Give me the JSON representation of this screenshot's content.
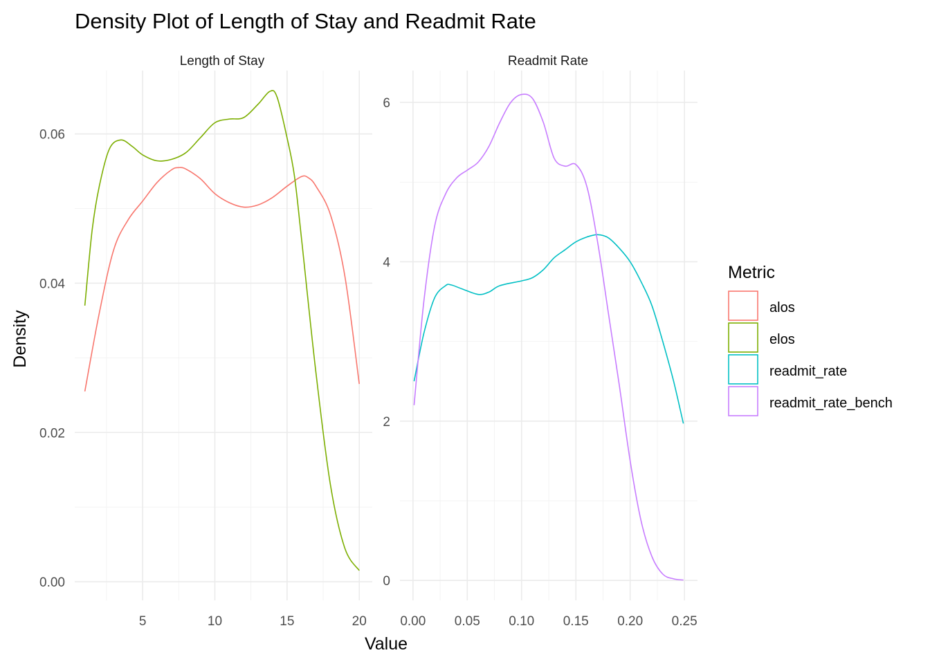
{
  "title": "Density Plot of Length of Stay and Readmit Rate",
  "xlabel": "Value",
  "ylabel": "Density",
  "legend": {
    "title": "Metric",
    "items": [
      {
        "label": "alos",
        "color": "#F8766D"
      },
      {
        "label": "elos",
        "color": "#7CAE00"
      },
      {
        "label": "readmit_rate",
        "color": "#00BFC4"
      },
      {
        "label": "readmit_rate_bench",
        "color": "#C77CFF"
      }
    ]
  },
  "chart_data": [
    {
      "type": "line",
      "panel": "Length of Stay",
      "xlim": [
        0.3,
        20.9
      ],
      "ylim": [
        -0.0025,
        0.0685
      ],
      "xticks": [
        5,
        10,
        15,
        20
      ],
      "yticks": [
        0.0,
        0.02,
        0.04,
        0.06
      ],
      "xtick_labels": [
        "5",
        "10",
        "15",
        "20"
      ],
      "ytick_labels": [
        "0.00",
        "0.02",
        "0.04",
        "0.06"
      ],
      "series": [
        {
          "name": "alos",
          "color": "#F8766D",
          "points": [
            [
              1,
              0.0255
            ],
            [
              2,
              0.036
            ],
            [
              3,
              0.0445
            ],
            [
              4,
              0.0485
            ],
            [
              5,
              0.051
            ],
            [
              6,
              0.0535
            ],
            [
              7,
              0.0552
            ],
            [
              7.5,
              0.0555
            ],
            [
              8,
              0.0553
            ],
            [
              9,
              0.054
            ],
            [
              10,
              0.052
            ],
            [
              11,
              0.0508
            ],
            [
              12,
              0.0502
            ],
            [
              13,
              0.0505
            ],
            [
              14,
              0.0515
            ],
            [
              15,
              0.053
            ],
            [
              16,
              0.0543
            ],
            [
              16.5,
              0.0541
            ],
            [
              17,
              0.053
            ],
            [
              18,
              0.0492
            ],
            [
              19,
              0.041
            ],
            [
              20,
              0.0265
            ]
          ]
        },
        {
          "name": "elos",
          "color": "#7CAE00",
          "points": [
            [
              1,
              0.037
            ],
            [
              1.5,
              0.047
            ],
            [
              2,
              0.053
            ],
            [
              2.7,
              0.058
            ],
            [
              3.5,
              0.0592
            ],
            [
              4.3,
              0.0583
            ],
            [
              5,
              0.0572
            ],
            [
              6,
              0.0564
            ],
            [
              7,
              0.0566
            ],
            [
              8,
              0.0575
            ],
            [
              9,
              0.0595
            ],
            [
              10,
              0.0615
            ],
            [
              11,
              0.062
            ],
            [
              12,
              0.0622
            ],
            [
              13,
              0.064
            ],
            [
              13.8,
              0.0657
            ],
            [
              14.3,
              0.065
            ],
            [
              15,
              0.0595
            ],
            [
              15.5,
              0.0545
            ],
            [
              16,
              0.046
            ],
            [
              17,
              0.028
            ],
            [
              18,
              0.013
            ],
            [
              19,
              0.0045
            ],
            [
              20,
              0.0015
            ]
          ]
        }
      ]
    },
    {
      "type": "line",
      "panel": "Readmit Rate",
      "xlim": [
        -0.012,
        0.262
      ],
      "ylim": [
        -0.25,
        6.4
      ],
      "xticks": [
        0.0,
        0.05,
        0.1,
        0.15,
        0.2,
        0.25
      ],
      "yticks": [
        0,
        2,
        4,
        6
      ],
      "xtick_labels": [
        "0.00",
        "0.05",
        "0.10",
        "0.15",
        "0.20",
        "0.25"
      ],
      "ytick_labels": [
        "0",
        "2",
        "4",
        "6"
      ],
      "series": [
        {
          "name": "readmit_rate",
          "color": "#00BFC4",
          "points": [
            [
              0.001,
              2.5
            ],
            [
              0.01,
              3.1
            ],
            [
              0.02,
              3.55
            ],
            [
              0.03,
              3.7
            ],
            [
              0.035,
              3.71
            ],
            [
              0.045,
              3.66
            ],
            [
              0.06,
              3.59
            ],
            [
              0.07,
              3.62
            ],
            [
              0.08,
              3.7
            ],
            [
              0.1,
              3.76
            ],
            [
              0.11,
              3.8
            ],
            [
              0.12,
              3.9
            ],
            [
              0.13,
              4.05
            ],
            [
              0.14,
              4.15
            ],
            [
              0.15,
              4.25
            ],
            [
              0.16,
              4.31
            ],
            [
              0.17,
              4.34
            ],
            [
              0.18,
              4.3
            ],
            [
              0.19,
              4.17
            ],
            [
              0.2,
              4.0
            ],
            [
              0.21,
              3.75
            ],
            [
              0.22,
              3.45
            ],
            [
              0.23,
              3.0
            ],
            [
              0.24,
              2.5
            ],
            [
              0.249,
              1.97
            ]
          ]
        },
        {
          "name": "readmit_rate_bench",
          "color": "#C77CFF",
          "points": [
            [
              0.001,
              2.2
            ],
            [
              0.01,
              3.5
            ],
            [
              0.02,
              4.45
            ],
            [
              0.03,
              4.85
            ],
            [
              0.04,
              5.05
            ],
            [
              0.05,
              5.15
            ],
            [
              0.06,
              5.25
            ],
            [
              0.07,
              5.45
            ],
            [
              0.08,
              5.75
            ],
            [
              0.09,
              6.0
            ],
            [
              0.1,
              6.1
            ],
            [
              0.11,
              6.05
            ],
            [
              0.12,
              5.75
            ],
            [
              0.13,
              5.3
            ],
            [
              0.14,
              5.2
            ],
            [
              0.15,
              5.22
            ],
            [
              0.16,
              4.95
            ],
            [
              0.17,
              4.25
            ],
            [
              0.18,
              3.35
            ],
            [
              0.19,
              2.45
            ],
            [
              0.2,
              1.5
            ],
            [
              0.21,
              0.75
            ],
            [
              0.22,
              0.3
            ],
            [
              0.23,
              0.08
            ],
            [
              0.24,
              0.02
            ],
            [
              0.249,
              0.005
            ]
          ]
        }
      ]
    }
  ]
}
